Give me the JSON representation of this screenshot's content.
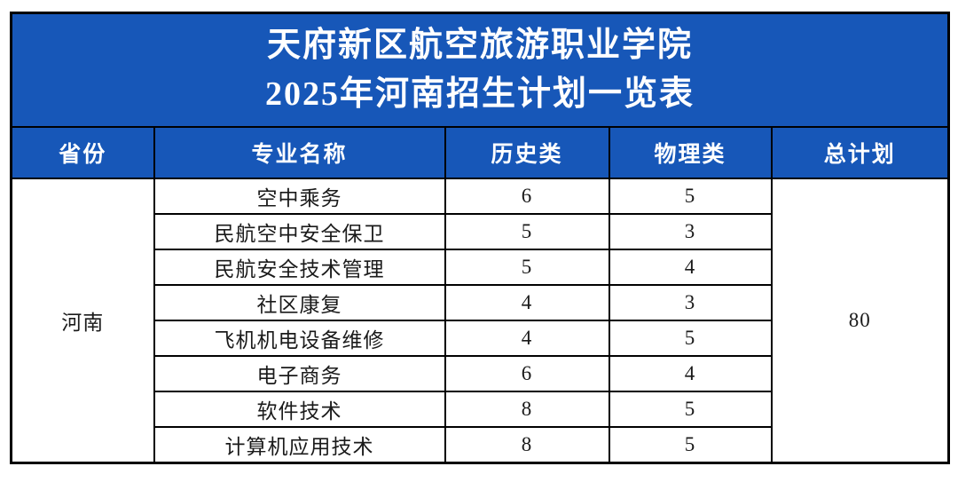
{
  "page": {
    "background_color": "#ffffff",
    "accent_blue": "#1757B8",
    "border_color": "#000000",
    "header_text_color": "#ffffff",
    "body_text_color": "#1a1a1a"
  },
  "title": {
    "line1": "天府新区航空旅游职业学院",
    "line2": "2025年河南招生计划一览表"
  },
  "table": {
    "columns": [
      "省份",
      "专业名称",
      "历史类",
      "物理类",
      "总计划"
    ],
    "province": "河南",
    "total_plan": "80",
    "rows": [
      {
        "major": "空中乘务",
        "history": "6",
        "physics": "5"
      },
      {
        "major": "民航空中安全保卫",
        "history": "5",
        "physics": "3"
      },
      {
        "major": "民航安全技术管理",
        "history": "5",
        "physics": "4"
      },
      {
        "major": "社区康复",
        "history": "4",
        "physics": "3"
      },
      {
        "major": "飞机机电设备维修",
        "history": "4",
        "physics": "5"
      },
      {
        "major": "电子商务",
        "history": "6",
        "physics": "4"
      },
      {
        "major": "软件技术",
        "history": "8",
        "physics": "5"
      },
      {
        "major": "计算机应用技术",
        "history": "8",
        "physics": "5"
      }
    ]
  }
}
